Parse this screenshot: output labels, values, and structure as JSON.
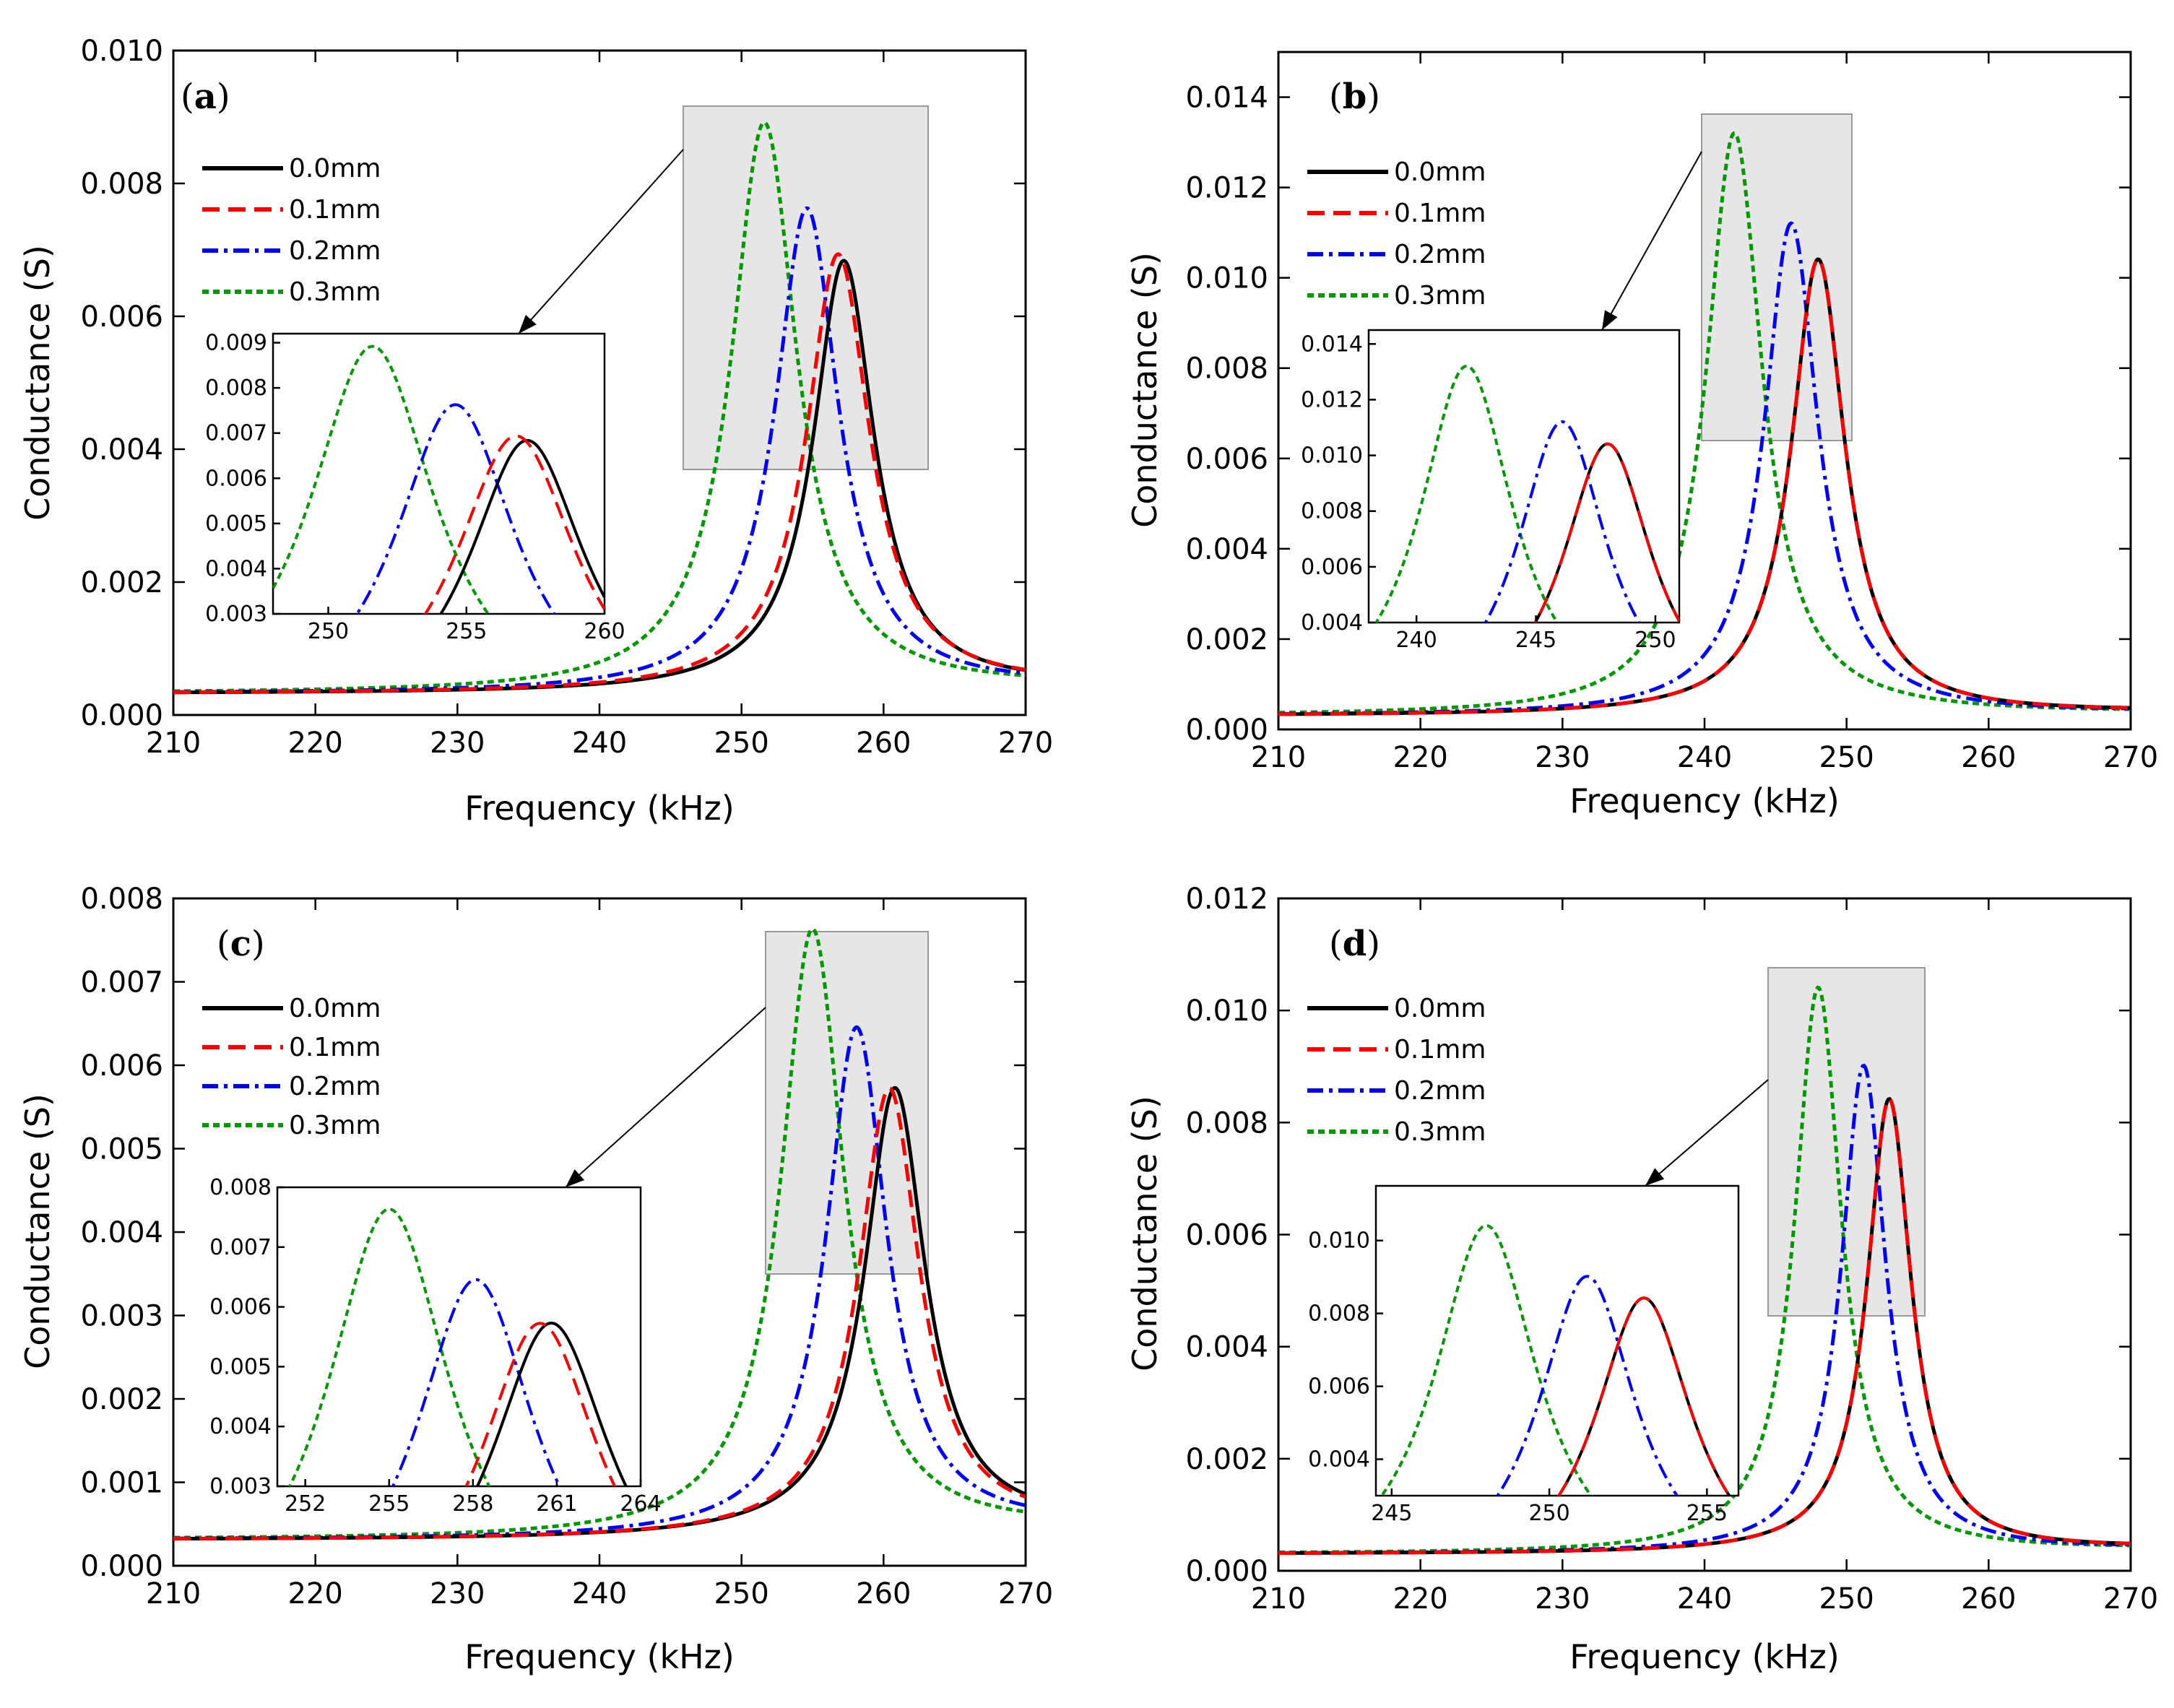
{
  "chart_data": [
    {
      "panel": "(a)",
      "type": "line",
      "xlabel": "Frequency (kHz)",
      "ylabel": "Conductance (S)",
      "xlim": [
        210,
        270
      ],
      "ylim": [
        0,
        0.01
      ],
      "xticks": [
        "210",
        "220",
        "230",
        "240",
        "250",
        "260",
        "270"
      ],
      "yticks": [
        "0.000",
        "0.002",
        "0.004",
        "0.006",
        "0.008",
        "0.010"
      ],
      "legend": "top-left",
      "series": [
        {
          "name": "0.0mm",
          "color": "#000000",
          "style": "solid",
          "peak_freq": 257.2,
          "peak_value": 0.0068,
          "baseline": 0.00032,
          "hwhm": 2.6,
          "tail_270": 0.0006
        },
        {
          "name": "0.1mm",
          "color": "#ff0000",
          "style": "dashed",
          "peak_freq": 256.8,
          "peak_value": 0.0069,
          "baseline": 0.00032,
          "hwhm": 2.7,
          "tail_270": 0.0006
        },
        {
          "name": "0.2mm",
          "color": "#0000ff",
          "style": "dashdot",
          "peak_freq": 254.6,
          "peak_value": 0.0076,
          "baseline": 0.00032,
          "hwhm": 2.7,
          "tail_270": 0.00058
        },
        {
          "name": "0.3mm",
          "color": "#009900",
          "style": "dotted",
          "peak_freq": 251.6,
          "peak_value": 0.0089,
          "baseline": 0.00032,
          "hwhm": 2.8,
          "tail_270": 0.00055
        }
      ],
      "inset": {
        "xlim": [
          248,
          260
        ],
        "ylim": [
          0.003,
          0.0092
        ],
        "xticks": [
          "250",
          "255",
          "260"
        ],
        "yticks": [
          "0.003",
          "0.004",
          "0.005",
          "0.006",
          "0.007",
          "0.008",
          "0.009"
        ]
      }
    },
    {
      "panel": "(b)",
      "type": "line",
      "xlabel": "Frequency (kHz)",
      "ylabel": "Conductance (S)",
      "xlim": [
        210,
        270
      ],
      "ylim": [
        0,
        0.015
      ],
      "xticks": [
        "210",
        "220",
        "230",
        "240",
        "250",
        "260",
        "270"
      ],
      "yticks": [
        "0.000",
        "0.002",
        "0.004",
        "0.006",
        "0.008",
        "0.010",
        "0.012",
        "0.014"
      ],
      "legend": "top-left",
      "series": [
        {
          "name": "0.0mm",
          "color": "#000000",
          "style": "solid",
          "peak_freq": 248.0,
          "peak_value": 0.0104,
          "baseline": 0.0003,
          "hwhm": 2.3,
          "tail_270": 0.0005
        },
        {
          "name": "0.1mm",
          "color": "#ff0000",
          "style": "dashed",
          "peak_freq": 248.0,
          "peak_value": 0.0104,
          "baseline": 0.0003,
          "hwhm": 2.3,
          "tail_270": 0.0005
        },
        {
          "name": "0.2mm",
          "color": "#0000ff",
          "style": "dashdot",
          "peak_freq": 246.1,
          "peak_value": 0.0112,
          "baseline": 0.0003,
          "hwhm": 2.3,
          "tail_270": 0.00048
        },
        {
          "name": "0.3mm",
          "color": "#009900",
          "style": "dotted",
          "peak_freq": 242.1,
          "peak_value": 0.0132,
          "baseline": 0.0003,
          "hwhm": 2.4,
          "tail_270": 0.00045
        }
      ],
      "inset": {
        "xlim": [
          238,
          251
        ],
        "ylim": [
          0.004,
          0.0145
        ],
        "xticks": [
          "240",
          "245",
          "250"
        ],
        "yticks": [
          "0.004",
          "0.006",
          "0.008",
          "0.010",
          "0.012",
          "0.014"
        ]
      }
    },
    {
      "panel": "(c)",
      "type": "line",
      "xlabel": "Frequency (kHz)",
      "ylabel": "Conductance (S)",
      "xlim": [
        210,
        270
      ],
      "ylim": [
        0,
        0.008
      ],
      "xticks": [
        "210",
        "220",
        "230",
        "240",
        "250",
        "260",
        "270"
      ],
      "yticks": [
        "0.000",
        "0.001",
        "0.002",
        "0.003",
        "0.004",
        "0.005",
        "0.006",
        "0.007",
        "0.008"
      ],
      "legend": "top-left",
      "series": [
        {
          "name": "0.0mm",
          "color": "#000000",
          "style": "solid",
          "peak_freq": 260.8,
          "peak_value": 0.00565,
          "baseline": 0.00031,
          "hwhm": 2.6,
          "tail_270": 0.00075
        },
        {
          "name": "0.1mm",
          "color": "#ff0000",
          "style": "dashed",
          "peak_freq": 260.4,
          "peak_value": 0.00565,
          "baseline": 0.00031,
          "hwhm": 2.6,
          "tail_270": 0.00074
        },
        {
          "name": "0.2mm",
          "color": "#0000ff",
          "style": "dashdot",
          "peak_freq": 258.1,
          "peak_value": 0.0064,
          "baseline": 0.00031,
          "hwhm": 2.6,
          "tail_270": 0.0007
        },
        {
          "name": "0.3mm",
          "color": "#009900",
          "style": "dotted",
          "peak_freq": 255.0,
          "peak_value": 0.0076,
          "baseline": 0.00031,
          "hwhm": 2.7,
          "tail_270": 0.00062
        }
      ],
      "inset": {
        "xlim": [
          251,
          264
        ],
        "ylim": [
          0.003,
          0.008
        ],
        "xticks": [
          "252",
          "255",
          "258",
          "261",
          "264"
        ],
        "yticks": [
          "0.003",
          "0.004",
          "0.005",
          "0.006",
          "0.007",
          "0.008"
        ]
      }
    },
    {
      "panel": "(d)",
      "type": "line",
      "xlabel": "Frequency (kHz)",
      "ylabel": "Conductance (S)",
      "xlim": [
        210,
        270
      ],
      "ylim": [
        0,
        0.012
      ],
      "xticks": [
        "210",
        "220",
        "230",
        "240",
        "250",
        "260",
        "270"
      ],
      "yticks": [
        "0.000",
        "0.002",
        "0.004",
        "0.006",
        "0.008",
        "0.010",
        "0.012"
      ],
      "legend": "top-left",
      "series": [
        {
          "name": "0.0mm",
          "color": "#000000",
          "style": "solid",
          "peak_freq": 253.0,
          "peak_value": 0.0084,
          "baseline": 0.0003,
          "hwhm": 1.9,
          "tail_270": 0.00055
        },
        {
          "name": "0.1mm",
          "color": "#ff0000",
          "style": "dashed",
          "peak_freq": 253.0,
          "peak_value": 0.0084,
          "baseline": 0.0003,
          "hwhm": 1.9,
          "tail_270": 0.00055
        },
        {
          "name": "0.2mm",
          "color": "#0000ff",
          "style": "dashdot",
          "peak_freq": 251.2,
          "peak_value": 0.009,
          "baseline": 0.0003,
          "hwhm": 1.9,
          "tail_270": 0.00052
        },
        {
          "name": "0.3mm",
          "color": "#009900",
          "style": "dotted",
          "peak_freq": 248.0,
          "peak_value": 0.0104,
          "baseline": 0.0003,
          "hwhm": 2.0,
          "tail_270": 0.0005
        }
      ],
      "inset": {
        "xlim": [
          244.5,
          256
        ],
        "ylim": [
          0.003,
          0.0115
        ],
        "xticks": [
          "245",
          "250",
          "255"
        ],
        "yticks": [
          "0.004",
          "0.006",
          "0.008",
          "0.010"
        ]
      }
    }
  ]
}
